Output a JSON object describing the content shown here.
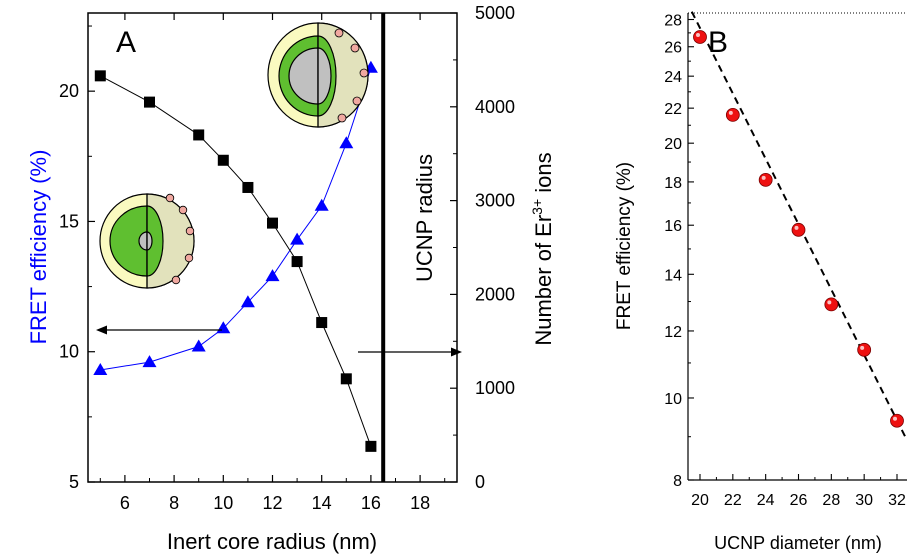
{
  "colors": {
    "fret": "#0000ff",
    "er": "#000000",
    "sphere_shell": "#fafac0",
    "sphere_green": "#5fbf30",
    "sphere_core": "#c0c0c0",
    "sphere_dots": "#f0a8a0",
    "panel_b_points": "#ee1111"
  },
  "chart_data": [
    {
      "panel_label": "A",
      "type": "line",
      "xlabel": "Inert core radius (nm)",
      "ylabel_left": "FRET efficiency (%)",
      "ylabel_right_prefix": "Number of Er",
      "ylabel_right_superscript": "3+",
      "ylabel_right_suffix": " ions",
      "xlim": [
        4.5,
        19.5
      ],
      "ylim_left": [
        5,
        23
      ],
      "ylim_right": [
        0,
        5000
      ],
      "xticks": [
        6,
        8,
        10,
        12,
        14,
        16,
        18
      ],
      "yticks_left": [
        5,
        10,
        15,
        20
      ],
      "yticks_right": [
        0,
        1000,
        2000,
        3000,
        4000,
        5000
      ],
      "vline": {
        "x": 16.5,
        "label": "UCNP radius"
      },
      "series": [
        {
          "axis": "left",
          "marker": "triangle",
          "x": [
            5,
            7,
            9,
            10,
            11,
            12,
            13,
            14,
            15,
            16
          ],
          "y": [
            9.3,
            9.6,
            10.2,
            10.9,
            11.9,
            12.9,
            14.3,
            15.6,
            18.0,
            20.9
          ]
        },
        {
          "axis": "right",
          "marker": "square",
          "x": [
            5,
            7,
            9,
            10,
            11,
            12,
            13,
            14,
            15,
            16
          ],
          "y": [
            4330,
            4050,
            3700,
            3430,
            3140,
            2760,
            2350,
            1700,
            1100,
            380
          ]
        }
      ]
    },
    {
      "panel_label": "B",
      "type": "scatter",
      "xlabel": "UCNP diameter (nm)",
      "ylabel": "FRET efficiency (%)",
      "yscale": "log",
      "xlim": [
        19,
        33
      ],
      "ylim": [
        8,
        28.5
      ],
      "xticks": [
        20,
        22,
        24,
        26,
        28,
        30,
        32
      ],
      "yticks": [
        8,
        10,
        12,
        14,
        16,
        18,
        20,
        22,
        24,
        26,
        28
      ],
      "points": {
        "x": [
          20,
          22,
          24,
          26,
          28,
          30,
          32
        ],
        "y": [
          26.7,
          21.6,
          18.1,
          15.8,
          12.9,
          11.4,
          9.4
        ]
      },
      "fit": {
        "x": [
          19.5,
          32.5
        ],
        "y": [
          28.6,
          9.0
        ]
      }
    }
  ]
}
